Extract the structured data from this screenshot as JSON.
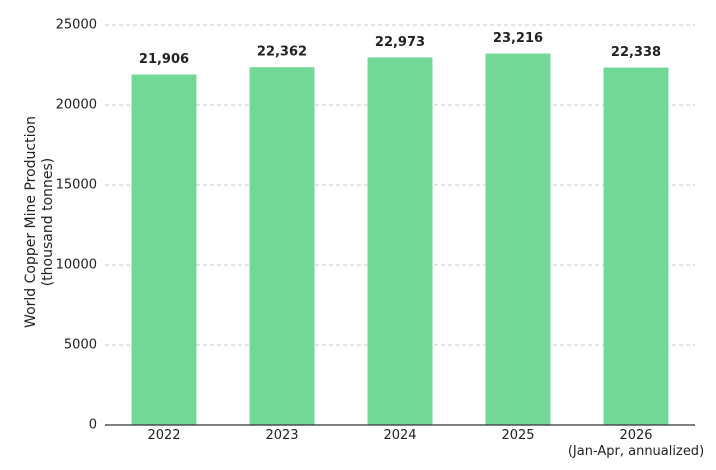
{
  "chart_data": {
    "type": "bar",
    "y_label": "World Copper Mine Production\n(thousand tonnes)",
    "categories": [
      "2022",
      "2023",
      "2024",
      "2025",
      "2026\n(Jan-Apr, annualized)"
    ],
    "values": [
      21906,
      22362,
      22973,
      23216,
      22338
    ],
    "value_labels": [
      "21,906",
      "22,362",
      "22,973",
      "23,216",
      "22,338"
    ],
    "color": "#72d898",
    "ylim": [
      0,
      25000
    ],
    "yticks": [
      0,
      5000,
      10000,
      15000,
      20000,
      25000
    ],
    "grid": true
  }
}
